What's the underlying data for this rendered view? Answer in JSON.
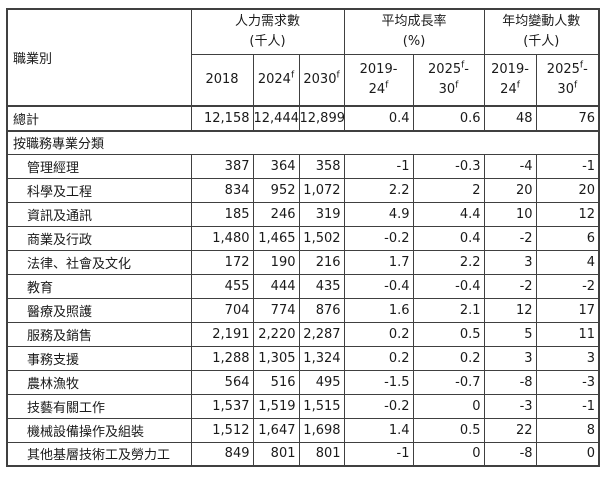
{
  "colors": {
    "border": "#404040",
    "text": "#1a1a1a",
    "background": "#ffffff"
  },
  "table": {
    "occupation_header": "職業別",
    "groups": [
      {
        "line1": "人力需求數",
        "line2": "(千人)",
        "cols_html": [
          "2018",
          "2024<sup>f</sup>",
          "2030<sup>f</sup>"
        ]
      },
      {
        "line1": "平均成長率",
        "line2": "(%)",
        "cols_html": [
          "2019-<br>24<sup>f</sup>",
          "2025<sup>f</sup>-<br>30<sup>f</sup>"
        ]
      },
      {
        "line1": "年均變動人數",
        "line2": "(千人)",
        "cols_html": [
          "2019-<br>24<sup>f</sup>",
          "2025<sup>f</sup>-<br>30<sup>f</sup>"
        ]
      }
    ],
    "total_row": {
      "label": "總計",
      "values": [
        "12,158",
        "12,444",
        "12,899",
        "0.4",
        "0.6",
        "48",
        "76"
      ]
    },
    "section_label": "按職務專業分類",
    "rows": [
      {
        "label": "管理經理",
        "values": [
          "387",
          "364",
          "358",
          "-1",
          "-0.3",
          "-4",
          "-1"
        ]
      },
      {
        "label": "科學及工程",
        "values": [
          "834",
          "952",
          "1,072",
          "2.2",
          "2",
          "20",
          "20"
        ]
      },
      {
        "label": "資訊及通訊",
        "values": [
          "185",
          "246",
          "319",
          "4.9",
          "4.4",
          "10",
          "12"
        ]
      },
      {
        "label": "商業及行政",
        "values": [
          "1,480",
          "1,465",
          "1,502",
          "-0.2",
          "0.4",
          "-2",
          "6"
        ]
      },
      {
        "label": "法律、社會及文化",
        "values": [
          "172",
          "190",
          "216",
          "1.7",
          "2.2",
          "3",
          "4"
        ]
      },
      {
        "label": "教育",
        "values": [
          "455",
          "444",
          "435",
          "-0.4",
          "-0.4",
          "-2",
          "-2"
        ]
      },
      {
        "label": "醫療及照護",
        "values": [
          "704",
          "774",
          "876",
          "1.6",
          "2.1",
          "12",
          "17"
        ]
      },
      {
        "label": "服務及銷售",
        "values": [
          "2,191",
          "2,220",
          "2,287",
          "0.2",
          "0.5",
          "5",
          "11"
        ]
      },
      {
        "label": "事務支援",
        "values": [
          "1,288",
          "1,305",
          "1,324",
          "0.2",
          "0.2",
          "3",
          "3"
        ]
      },
      {
        "label": "農林漁牧",
        "values": [
          "564",
          "516",
          "495",
          "-1.5",
          "-0.7",
          "-8",
          "-3"
        ]
      },
      {
        "label": "技藝有關工作",
        "values": [
          "1,537",
          "1,519",
          "1,515",
          "-0.2",
          "0",
          "-3",
          "-1"
        ]
      },
      {
        "label": "機械設備操作及組裝",
        "values": [
          "1,512",
          "1,647",
          "1,698",
          "1.4",
          "0.5",
          "22",
          "8"
        ]
      },
      {
        "label": "其他基層技術工及勞力工",
        "values": [
          "849",
          "801",
          "801",
          "-1",
          "0",
          "-8",
          "0"
        ]
      }
    ]
  }
}
